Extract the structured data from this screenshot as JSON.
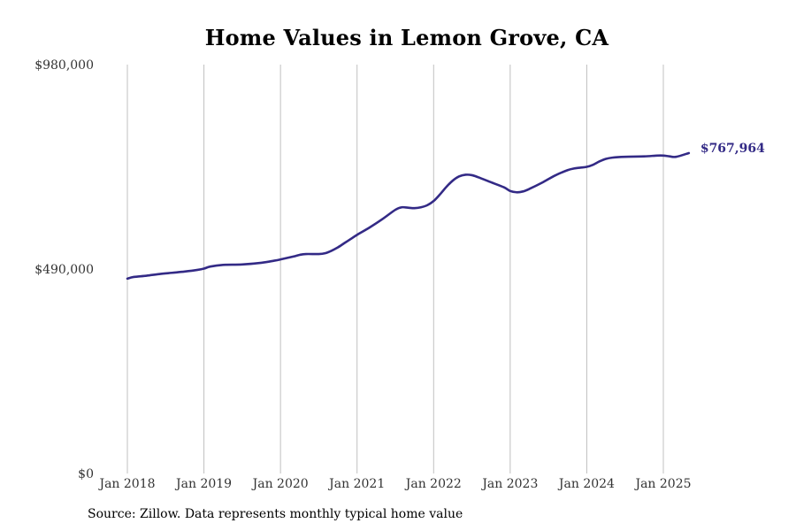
{
  "chart_data": {
    "type": "line",
    "title": "Home Values in Lemon Grove, CA",
    "xlabel": "",
    "ylabel": "",
    "ylim": [
      0,
      980000
    ],
    "y_ticks": [
      {
        "value": 0,
        "label": "$0"
      },
      {
        "value": 490000,
        "label": "$490,000"
      },
      {
        "value": 980000,
        "label": "$980,000"
      }
    ],
    "x_range": [
      2018.0,
      2025.333
    ],
    "x_ticks": [
      {
        "value": 2018,
        "label": "Jan 2018"
      },
      {
        "value": 2019,
        "label": "Jan 2019"
      },
      {
        "value": 2020,
        "label": "Jan 2020"
      },
      {
        "value": 2021,
        "label": "Jan 2021"
      },
      {
        "value": 2022,
        "label": "Jan 2022"
      },
      {
        "value": 2023,
        "label": "Jan 2023"
      },
      {
        "value": 2024,
        "label": "Jan 2024"
      },
      {
        "value": 2025,
        "label": "Jan 2025"
      }
    ],
    "vertical_grid": true,
    "line_color": "#332a86",
    "end_label": "$767,964",
    "series": [
      {
        "x": [
          2018.0,
          2018.083,
          2018.25,
          2018.417,
          2018.583,
          2018.75,
          2018.917,
          2019.0,
          2019.083,
          2019.25,
          2019.5,
          2019.75,
          2019.917,
          2020.0,
          2020.167,
          2020.25,
          2020.333,
          2020.5,
          2020.583,
          2020.667,
          2020.75,
          2020.833,
          2020.917,
          2021.0,
          2021.167,
          2021.333,
          2021.5,
          2021.583,
          2021.667,
          2021.75,
          2021.833,
          2021.917,
          2022.0,
          2022.083,
          2022.167,
          2022.25,
          2022.333,
          2022.417,
          2022.5,
          2022.583,
          2022.75,
          2022.917,
          2023.0,
          2023.083,
          2023.167,
          2023.25,
          2023.417,
          2023.583,
          2023.75,
          2023.833,
          2023.917,
          2024.0,
          2024.083,
          2024.167,
          2024.25,
          2024.333,
          2024.5,
          2024.75,
          2024.917,
          2025.0,
          2025.083,
          2025.167,
          2025.333
        ],
        "y": [
          467000,
          471000,
          474000,
          478000,
          481000,
          484000,
          488000,
          491000,
          496000,
          500000,
          501000,
          505000,
          510000,
          513000,
          520000,
          524000,
          526000,
          526000,
          528000,
          534000,
          542000,
          552000,
          562000,
          572000,
          590000,
          610000,
          632000,
          638000,
          637000,
          636000,
          638000,
          643000,
          653000,
          669000,
          687000,
          702000,
          712000,
          716000,
          715000,
          710000,
          698000,
          686000,
          677000,
          674000,
          676000,
          682000,
          697000,
          714000,
          727000,
          731000,
          733000,
          735000,
          740000,
          748000,
          754000,
          757000,
          759000,
          760000,
          762000,
          762000,
          760000,
          759000,
          767964
        ]
      }
    ]
  },
  "source_note": "Source: Zillow. Data represents monthly typical home value"
}
